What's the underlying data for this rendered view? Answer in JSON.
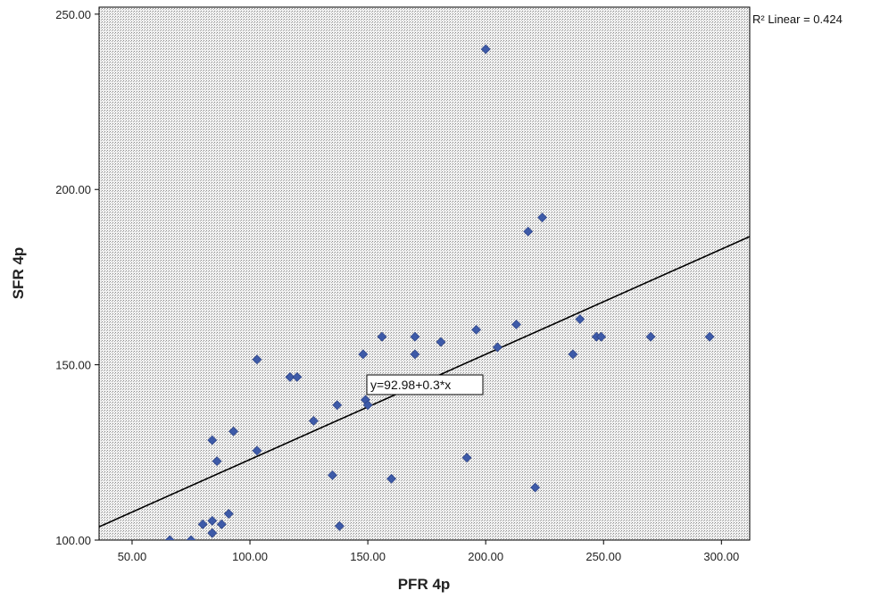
{
  "chart_data": {
    "type": "scatter",
    "xlabel": "PFR 4p",
    "ylabel": "SFR 4p",
    "xlim": [
      36,
      312
    ],
    "ylim": [
      100,
      252
    ],
    "x_ticks": [
      50,
      100,
      150,
      200,
      250,
      300
    ],
    "x_tick_labels": [
      "50.00",
      "100.00",
      "150.00",
      "200.00",
      "250.00",
      "300.00"
    ],
    "y_ticks": [
      100,
      150,
      200,
      250
    ],
    "y_tick_labels": [
      "100.00",
      "150.00",
      "200.00",
      "250.00"
    ],
    "grid": false,
    "marker_color": "#3d5aa8",
    "points": [
      {
        "x": 66,
        "y": 100
      },
      {
        "x": 75,
        "y": 100
      },
      {
        "x": 80,
        "y": 104.5
      },
      {
        "x": 84,
        "y": 102
      },
      {
        "x": 84,
        "y": 105.5
      },
      {
        "x": 88,
        "y": 104.5
      },
      {
        "x": 91,
        "y": 107.5
      },
      {
        "x": 84,
        "y": 128.5
      },
      {
        "x": 86,
        "y": 122.5
      },
      {
        "x": 93,
        "y": 131
      },
      {
        "x": 103,
        "y": 125.5
      },
      {
        "x": 103,
        "y": 151.5
      },
      {
        "x": 117,
        "y": 146.5
      },
      {
        "x": 120,
        "y": 146.5
      },
      {
        "x": 127,
        "y": 134
      },
      {
        "x": 135,
        "y": 118.5
      },
      {
        "x": 137,
        "y": 138.5
      },
      {
        "x": 138,
        "y": 104
      },
      {
        "x": 148,
        "y": 153
      },
      {
        "x": 149,
        "y": 140
      },
      {
        "x": 150,
        "y": 138.5
      },
      {
        "x": 156,
        "y": 158
      },
      {
        "x": 160,
        "y": 117.5
      },
      {
        "x": 170,
        "y": 153
      },
      {
        "x": 170,
        "y": 158
      },
      {
        "x": 181,
        "y": 156.5
      },
      {
        "x": 192,
        "y": 123.5
      },
      {
        "x": 196,
        "y": 160
      },
      {
        "x": 200,
        "y": 240
      },
      {
        "x": 205,
        "y": 155
      },
      {
        "x": 213,
        "y": 161.5
      },
      {
        "x": 218,
        "y": 188
      },
      {
        "x": 221,
        "y": 115
      },
      {
        "x": 224,
        "y": 192
      },
      {
        "x": 237,
        "y": 153
      },
      {
        "x": 240,
        "y": 163
      },
      {
        "x": 247,
        "y": 158
      },
      {
        "x": 249,
        "y": 158
      },
      {
        "x": 270,
        "y": 158
      },
      {
        "x": 295,
        "y": 158
      }
    ],
    "fit_line": {
      "intercept": 92.98,
      "slope": 0.3
    },
    "fit_equation_label": "y=92.98+0.3*x",
    "r2_label": "R² Linear = 0.424"
  }
}
